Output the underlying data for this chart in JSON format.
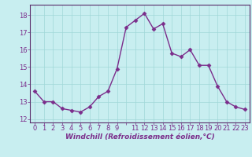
{
  "x": [
    0,
    1,
    2,
    3,
    4,
    5,
    6,
    7,
    8,
    9,
    10,
    11,
    12,
    13,
    14,
    15,
    16,
    17,
    18,
    19,
    20,
    21,
    22,
    23
  ],
  "y": [
    13.6,
    13.0,
    13.0,
    12.6,
    12.5,
    12.4,
    12.7,
    13.3,
    13.6,
    14.9,
    17.3,
    17.7,
    18.1,
    17.2,
    17.5,
    15.8,
    15.6,
    16.0,
    15.1,
    15.1,
    13.9,
    13.0,
    12.7,
    12.55
  ],
  "xlabel": "Windchill (Refroidissement éolien,°C)",
  "ylim": [
    11.8,
    18.6
  ],
  "xlim": [
    -0.5,
    23.5
  ],
  "yticks": [
    12,
    13,
    14,
    15,
    16,
    17,
    18
  ],
  "xticks": [
    0,
    1,
    2,
    3,
    4,
    5,
    6,
    7,
    8,
    9,
    10,
    11,
    12,
    13,
    14,
    15,
    16,
    17,
    18,
    19,
    20,
    21,
    22,
    23
  ],
  "xtick_labels": [
    "0",
    "1",
    "2",
    "3",
    "4",
    "5",
    "6",
    "7",
    "8",
    "9",
    "",
    "11",
    "12",
    "13",
    "14",
    "15",
    "16",
    "17",
    "18",
    "19",
    "20",
    "21",
    "22",
    "23"
  ],
  "line_color": "#7b2d8b",
  "marker_color": "#7b2d8b",
  "bg_color": "#c8eef0",
  "grid_color": "#a0d8d8",
  "tick_label_color": "#7b2d8b",
  "xlabel_color": "#7b2d8b",
  "tick_fontsize": 6.0,
  "xlabel_fontsize": 6.5,
  "linewidth": 1.0,
  "markersize": 2.5
}
